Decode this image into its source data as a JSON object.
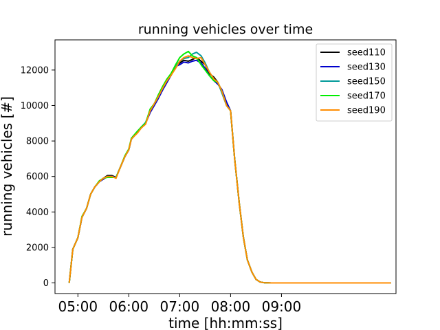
{
  "chart_data": {
    "type": "line",
    "title": "running vehicles over time",
    "xlabel": "time [hh:mm:ss]",
    "ylabel": "running vehicles [#]",
    "x_unit": "hours of day",
    "xlim": [
      4.55,
      11.25
    ],
    "ylim": [
      -600,
      13700
    ],
    "x_ticks": [
      {
        "value": 5,
        "label": "05:00"
      },
      {
        "value": 6,
        "label": "06:00"
      },
      {
        "value": 7,
        "label": "07:00"
      },
      {
        "value": 8,
        "label": "08:00"
      },
      {
        "value": 9,
        "label": "09:00"
      }
    ],
    "y_ticks": [
      {
        "value": 0,
        "label": "0"
      },
      {
        "value": 2000,
        "label": "2000"
      },
      {
        "value": 4000,
        "label": "4000"
      },
      {
        "value": 6000,
        "label": "6000"
      },
      {
        "value": 8000,
        "label": "8000"
      },
      {
        "value": 10000,
        "label": "10000"
      },
      {
        "value": 12000,
        "label": "12000"
      }
    ],
    "legend_position": "top-right",
    "grid": false,
    "x": [
      4.83,
      4.9,
      5.0,
      5.08,
      5.17,
      5.25,
      5.33,
      5.42,
      5.5,
      5.58,
      5.67,
      5.75,
      5.83,
      5.92,
      6.0,
      6.05,
      6.08,
      6.17,
      6.25,
      6.33,
      6.42,
      6.5,
      6.58,
      6.67,
      6.75,
      6.83,
      6.92,
      7.0,
      7.08,
      7.17,
      7.25,
      7.33,
      7.42,
      7.5,
      7.58,
      7.67,
      7.75,
      7.83,
      7.92,
      8.0,
      8.08,
      8.17,
      8.25,
      8.33,
      8.42,
      8.5,
      8.58,
      8.67,
      8.75,
      8.8,
      8.83,
      8.88,
      8.92,
      8.97,
      9.0,
      9.05,
      9.1,
      9.17,
      9.25,
      9.33,
      9.5,
      10.0,
      10.5,
      11.0,
      11.15
    ],
    "series": [
      {
        "name": "seed110",
        "color": "#000000",
        "values": [
          0,
          1900,
          2550,
          3700,
          4200,
          5000,
          5400,
          5700,
          5900,
          6050,
          6050,
          5950,
          6500,
          7100,
          7500,
          8100,
          8200,
          8500,
          8800,
          9000,
          9700,
          10100,
          10500,
          11000,
          11400,
          11700,
          12200,
          12400,
          12550,
          12500,
          12600,
          12700,
          12500,
          12300,
          11800,
          11600,
          11300,
          10800,
          10100,
          9700,
          7000,
          4500,
          2600,
          1300,
          600,
          200,
          50,
          10,
          5,
          0,
          0,
          0,
          0,
          0,
          0,
          0,
          0,
          0,
          0,
          0,
          0,
          0,
          0,
          0,
          0
        ]
      },
      {
        "name": "seed130",
        "color": "#0000cc",
        "values": [
          0,
          1900,
          2550,
          3700,
          4200,
          5000,
          5400,
          5700,
          5850,
          6000,
          6000,
          5950,
          6500,
          7100,
          7500,
          8100,
          8200,
          8500,
          8750,
          9000,
          9600,
          10000,
          10400,
          10900,
          11300,
          11700,
          12200,
          12300,
          12450,
          12400,
          12500,
          12550,
          12400,
          12100,
          11700,
          11400,
          11200,
          10900,
          10200,
          9700,
          7000,
          4500,
          2600,
          1300,
          600,
          200,
          50,
          10,
          5,
          0,
          0,
          0,
          0,
          0,
          0,
          0,
          0,
          0,
          0,
          0,
          0,
          0,
          0,
          0,
          0
        ]
      },
      {
        "name": "seed150",
        "color": "#009999",
        "values": [
          0,
          1900,
          2550,
          3700,
          4200,
          5000,
          5400,
          5700,
          5900,
          6000,
          5950,
          5950,
          6500,
          7100,
          7500,
          8100,
          8250,
          8550,
          8800,
          9050,
          9700,
          10100,
          10500,
          11000,
          11400,
          11700,
          12200,
          12500,
          12650,
          12700,
          12900,
          13000,
          12800,
          12400,
          11900,
          11500,
          11300,
          10700,
          10000,
          9700,
          7000,
          4500,
          2600,
          1300,
          600,
          200,
          50,
          10,
          5,
          0,
          0,
          0,
          0,
          0,
          0,
          0,
          0,
          0,
          0,
          0,
          0,
          0,
          0,
          0,
          0
        ]
      },
      {
        "name": "seed170",
        "color": "#00ee00",
        "values": [
          0,
          1900,
          2550,
          3750,
          4200,
          5000,
          5400,
          5750,
          5900,
          5950,
          5950,
          5950,
          6500,
          7150,
          7550,
          8150,
          8250,
          8550,
          8800,
          9000,
          9800,
          10100,
          10600,
          11100,
          11500,
          11800,
          12300,
          12700,
          12900,
          13050,
          12800,
          12700,
          12300,
          12000,
          11700,
          11400,
          11300,
          10800,
          10000,
          9700,
          7000,
          4500,
          2600,
          1300,
          600,
          200,
          50,
          10,
          5,
          0,
          0,
          0,
          0,
          0,
          0,
          0,
          0,
          0,
          0,
          0,
          0,
          0,
          0,
          0,
          0
        ]
      },
      {
        "name": "seed190",
        "color": "#ff8c00",
        "values": [
          0,
          1900,
          2550,
          3700,
          4200,
          5000,
          5400,
          5700,
          5900,
          6000,
          6000,
          5900,
          6500,
          7100,
          7500,
          8100,
          8200,
          8450,
          8750,
          8950,
          9700,
          10100,
          10500,
          11000,
          11400,
          11700,
          12100,
          12500,
          12700,
          12800,
          12700,
          12650,
          12700,
          12300,
          11900,
          11500,
          11300,
          10800,
          10000,
          9700,
          7000,
          4500,
          2600,
          1300,
          600,
          200,
          50,
          10,
          5,
          0,
          0,
          0,
          0,
          0,
          0,
          0,
          0,
          0,
          0,
          0,
          0,
          0,
          0,
          0,
          0
        ]
      }
    ]
  }
}
